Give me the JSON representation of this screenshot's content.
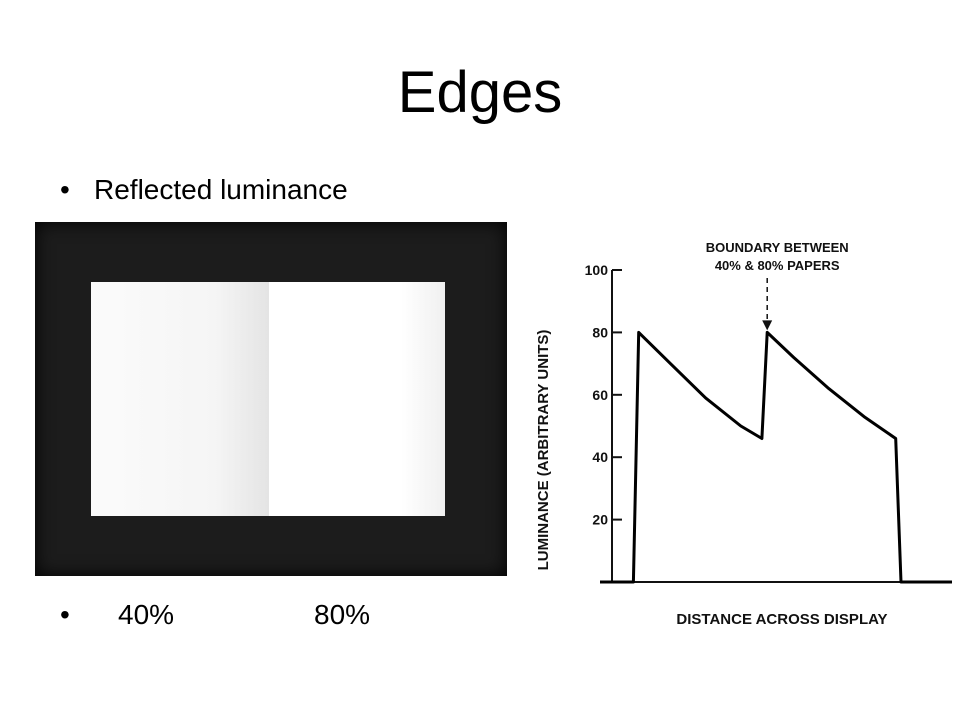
{
  "title": "Edges",
  "bullets": [
    {
      "marker": "•",
      "text": "Reflected luminance"
    },
    {
      "marker": "•",
      "labels": [
        "40%",
        "80%"
      ]
    }
  ],
  "chart_data": {
    "type": "line",
    "ylabel": "LUMINANCE (ARBITRARY UNITS)",
    "xlabel": "DISTANCE ACROSS DISPLAY",
    "yticks": [
      "20",
      "40",
      "60",
      "80",
      "100"
    ],
    "ylim": [
      0,
      100
    ],
    "xlim": [
      0,
      100
    ],
    "annotation": {
      "line1": "BOUNDARY BETWEEN",
      "line2": "40% & 80% PAPERS",
      "x": 47.5,
      "y": 80
    },
    "series": [
      {
        "points": [
          [
            0,
            0
          ],
          [
            9.5,
            0
          ],
          [
            11,
            80
          ],
          [
            20,
            70
          ],
          [
            30,
            59
          ],
          [
            40,
            50
          ],
          [
            46,
            46
          ],
          [
            47.5,
            80
          ],
          [
            55,
            72
          ],
          [
            65,
            62
          ],
          [
            75,
            53
          ],
          [
            84,
            46
          ],
          [
            85.5,
            0
          ],
          [
            100,
            0
          ]
        ]
      }
    ]
  }
}
